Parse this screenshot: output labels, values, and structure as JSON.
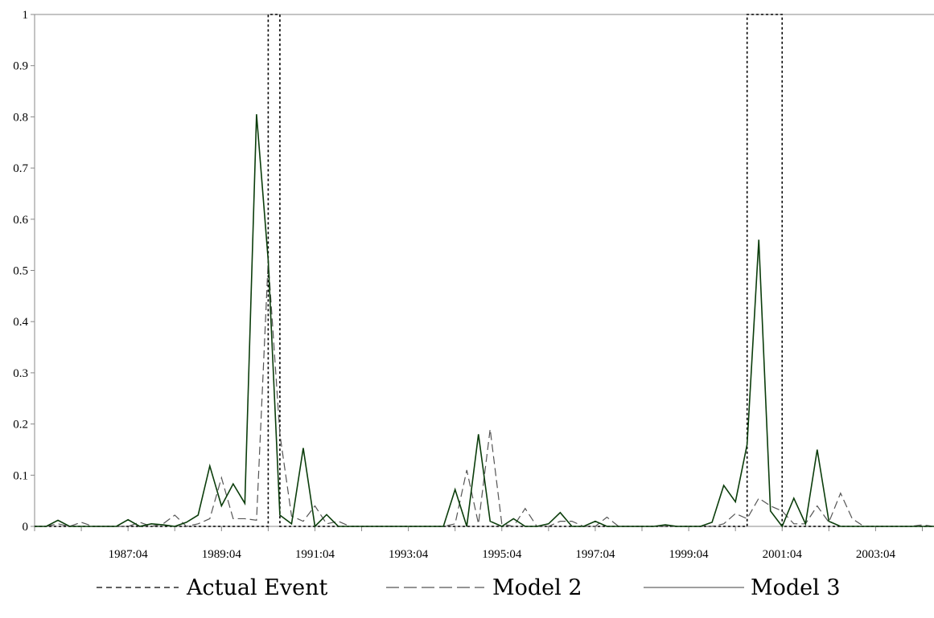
{
  "chart_data": {
    "type": "line",
    "title": "",
    "xlabel": "",
    "ylabel": "",
    "ylim": [
      0,
      1
    ],
    "y_ticks": [
      "0",
      "0.1",
      "0.2",
      "0.3",
      "0.4",
      "0.5",
      "0.6",
      "0.7",
      "0.8",
      "0.9",
      "1"
    ],
    "x_tick_labels": [
      "1987:04",
      "1989:04",
      "1991:04",
      "1993:04",
      "1995:04",
      "1997:04",
      "1999:04",
      "2001:04",
      "2003:04"
    ],
    "x_range": [
      "1985:04",
      "2005:01"
    ],
    "grid": false,
    "legend_position": "bottom",
    "series": [
      {
        "name": "Actual Event",
        "style": "dotted",
        "color": "#000000",
        "points": [
          [
            "1985:04",
            0
          ],
          [
            "1990:04",
            0
          ],
          [
            "1990:04",
            1
          ],
          [
            "1991:01",
            1
          ],
          [
            "1991:01",
            0
          ],
          [
            "2001:01",
            0
          ],
          [
            "2001:01",
            1
          ],
          [
            "2001:04",
            1
          ],
          [
            "2001:04",
            0
          ],
          [
            "2005:01",
            0
          ]
        ]
      },
      {
        "name": "Model 2",
        "style": "dashed",
        "color": "#555555",
        "points": [
          [
            "1985:04",
            0
          ],
          [
            "1986:01",
            0
          ],
          [
            "1986:02",
            0.005
          ],
          [
            "1986:03",
            0
          ],
          [
            "1986:04",
            0.008
          ],
          [
            "1987:01",
            0
          ],
          [
            "1987:02",
            0
          ],
          [
            "1987:03",
            0
          ],
          [
            "1987:04",
            0
          ],
          [
            "1988:01",
            0.008
          ],
          [
            "1988:02",
            0
          ],
          [
            "1988:03",
            0.005
          ],
          [
            "1988:04",
            0.022
          ],
          [
            "1989:01",
            0
          ],
          [
            "1989:02",
            0.005
          ],
          [
            "1989:03",
            0.015
          ],
          [
            "1989:04",
            0.095
          ],
          [
            "1990:01",
            0.015
          ],
          [
            "1990:02",
            0.015
          ],
          [
            "1990:03",
            0.012
          ],
          [
            "1990:04",
            0.52
          ],
          [
            "1991:01",
            0.18
          ],
          [
            "1991:02",
            0.02
          ],
          [
            "1991:03",
            0.01
          ],
          [
            "1991:04",
            0.04
          ],
          [
            "1992:01",
            0.005
          ],
          [
            "1992:02",
            0.01
          ],
          [
            "1992:03",
            0
          ],
          [
            "1992:04",
            0
          ],
          [
            "1993:01",
            0
          ],
          [
            "1993:02",
            0
          ],
          [
            "1993:03",
            0
          ],
          [
            "1993:04",
            0
          ],
          [
            "1994:01",
            0
          ],
          [
            "1994:02",
            0
          ],
          [
            "1994:03",
            0
          ],
          [
            "1994:04",
            0.005
          ],
          [
            "1995:01",
            0.11
          ],
          [
            "1995:02",
            0.005
          ],
          [
            "1995:03",
            0.19
          ],
          [
            "1995:04",
            0.005
          ],
          [
            "1996:01",
            0
          ],
          [
            "1996:02",
            0.035
          ],
          [
            "1996:03",
            0
          ],
          [
            "1996:04",
            0
          ],
          [
            "1997:01",
            0.01
          ],
          [
            "1997:02",
            0.01
          ],
          [
            "1997:03",
            0
          ],
          [
            "1997:04",
            0
          ],
          [
            "1998:01",
            0.018
          ],
          [
            "1998:02",
            0
          ],
          [
            "1998:03",
            0
          ],
          [
            "1998:04",
            0
          ],
          [
            "1999:01",
            0
          ],
          [
            "1999:02",
            0
          ],
          [
            "1999:03",
            0
          ],
          [
            "1999:04",
            0
          ],
          [
            "2000:01",
            0
          ],
          [
            "2000:02",
            0
          ],
          [
            "2000:03",
            0.005
          ],
          [
            "2000:04",
            0.025
          ],
          [
            "2001:01",
            0.015
          ],
          [
            "2001:02",
            0.055
          ],
          [
            "2001:03",
            0.04
          ],
          [
            "2001:04",
            0.03
          ],
          [
            "2002:01",
            0.005
          ],
          [
            "2002:02",
            0.005
          ],
          [
            "2002:03",
            0.04
          ],
          [
            "2002:04",
            0.008
          ],
          [
            "2003:01",
            0.065
          ],
          [
            "2003:02",
            0.015
          ],
          [
            "2003:03",
            0
          ],
          [
            "2003:04",
            0
          ],
          [
            "2004:01",
            0
          ],
          [
            "2004:02",
            0
          ],
          [
            "2004:03",
            0
          ],
          [
            "2004:04",
            0.003
          ],
          [
            "2005:01",
            0
          ]
        ]
      },
      {
        "name": "Model 3",
        "style": "solid",
        "color": "#0b3d0b",
        "points": [
          [
            "1985:04",
            0
          ],
          [
            "1986:01",
            0
          ],
          [
            "1986:02",
            0.012
          ],
          [
            "1986:03",
            0
          ],
          [
            "1986:04",
            0
          ],
          [
            "1987:01",
            0
          ],
          [
            "1987:02",
            0
          ],
          [
            "1987:03",
            0
          ],
          [
            "1987:04",
            0.013
          ],
          [
            "1988:01",
            0
          ],
          [
            "1988:02",
            0.005
          ],
          [
            "1988:03",
            0.003
          ],
          [
            "1988:04",
            0
          ],
          [
            "1989:01",
            0.008
          ],
          [
            "1989:02",
            0.022
          ],
          [
            "1989:03",
            0.118
          ],
          [
            "1989:04",
            0.04
          ],
          [
            "1990:01",
            0.083
          ],
          [
            "1990:02",
            0.045
          ],
          [
            "1990:03",
            0.805
          ],
          [
            "1990:04",
            0.52
          ],
          [
            "1991:01",
            0.022
          ],
          [
            "1991:02",
            0.005
          ],
          [
            "1991:03",
            0.153
          ],
          [
            "1991:04",
            0
          ],
          [
            "1992:01",
            0.023
          ],
          [
            "1992:02",
            0
          ],
          [
            "1992:03",
            0
          ],
          [
            "1992:04",
            0
          ],
          [
            "1993:01",
            0
          ],
          [
            "1993:02",
            0
          ],
          [
            "1993:03",
            0
          ],
          [
            "1993:04",
            0
          ],
          [
            "1994:01",
            0
          ],
          [
            "1994:02",
            0
          ],
          [
            "1994:03",
            0
          ],
          [
            "1994:04",
            0.072
          ],
          [
            "1995:01",
            0
          ],
          [
            "1995:02",
            0.18
          ],
          [
            "1995:03",
            0.01
          ],
          [
            "1995:04",
            0
          ],
          [
            "1996:01",
            0.015
          ],
          [
            "1996:02",
            0
          ],
          [
            "1996:03",
            0
          ],
          [
            "1996:04",
            0.005
          ],
          [
            "1997:01",
            0.027
          ],
          [
            "1997:02",
            0
          ],
          [
            "1997:03",
            0
          ],
          [
            "1997:04",
            0.01
          ],
          [
            "1998:01",
            0
          ],
          [
            "1998:02",
            0
          ],
          [
            "1998:03",
            0
          ],
          [
            "1998:04",
            0
          ],
          [
            "1999:01",
            0
          ],
          [
            "1999:02",
            0.003
          ],
          [
            "1999:03",
            0
          ],
          [
            "1999:04",
            0
          ],
          [
            "2000:01",
            0
          ],
          [
            "2000:02",
            0.008
          ],
          [
            "2000:03",
            0.08
          ],
          [
            "2000:04",
            0.048
          ],
          [
            "2001:01",
            0.16
          ],
          [
            "2001:02",
            0.56
          ],
          [
            "2001:03",
            0.03
          ],
          [
            "2001:04",
            0
          ],
          [
            "2002:01",
            0.055
          ],
          [
            "2002:02",
            0.005
          ],
          [
            "2002:03",
            0.15
          ],
          [
            "2002:04",
            0.01
          ],
          [
            "2003:01",
            0
          ],
          [
            "2003:02",
            0
          ],
          [
            "2003:03",
            0
          ],
          [
            "2003:04",
            0
          ],
          [
            "2004:01",
            0
          ],
          [
            "2004:02",
            0
          ],
          [
            "2004:03",
            0
          ],
          [
            "2004:04",
            0
          ],
          [
            "2005:01",
            0
          ]
        ]
      }
    ]
  }
}
